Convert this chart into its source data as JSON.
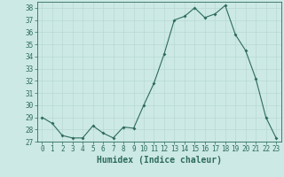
{
  "x": [
    0,
    1,
    2,
    3,
    4,
    5,
    6,
    7,
    8,
    9,
    10,
    11,
    12,
    13,
    14,
    15,
    16,
    17,
    18,
    19,
    20,
    21,
    22,
    23
  ],
  "y": [
    29,
    28.5,
    27.5,
    27.3,
    27.3,
    28.3,
    27.7,
    27.3,
    28.2,
    28.1,
    30.0,
    31.8,
    34.2,
    37.0,
    37.3,
    38.0,
    37.2,
    37.5,
    38.2,
    35.8,
    34.5,
    32.2,
    29.0,
    27.3
  ],
  "line_color": "#2e6b5e",
  "marker": "D",
  "marker_size": 2,
  "bg_color": "#cce9e5",
  "grid_color": "#b8d8d4",
  "xlabel": "Humidex (Indice chaleur)",
  "ylim": [
    27,
    38.5
  ],
  "xlim": [
    -0.5,
    23.5
  ],
  "yticks": [
    27,
    28,
    29,
    30,
    31,
    32,
    33,
    34,
    35,
    36,
    37,
    38
  ],
  "xticks": [
    0,
    1,
    2,
    3,
    4,
    5,
    6,
    7,
    8,
    9,
    10,
    11,
    12,
    13,
    14,
    15,
    16,
    17,
    18,
    19,
    20,
    21,
    22,
    23
  ],
  "tick_color": "#2e6b5e",
  "label_color": "#2e6b5e",
  "axis_color": "#2e6b5e",
  "tick_fontsize": 5.5,
  "xlabel_fontsize": 7
}
